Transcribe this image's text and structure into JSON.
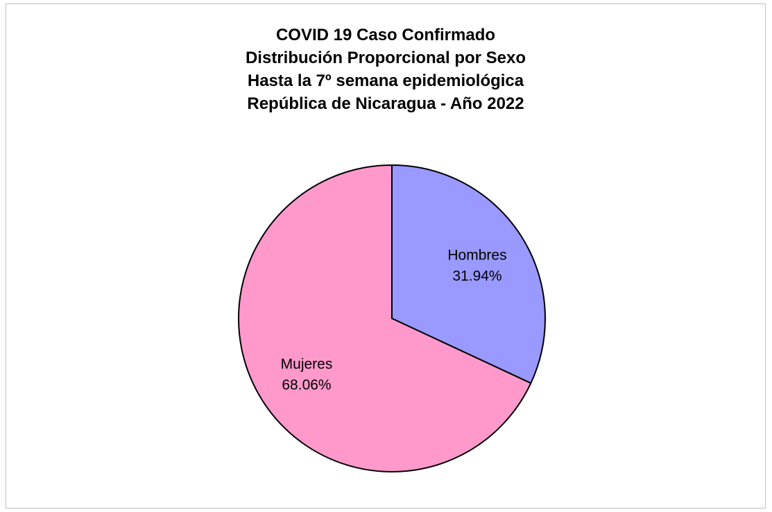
{
  "chart_data": {
    "type": "pie",
    "title_lines": [
      "COVID 19 Caso Confirmado",
      "Distribución Proporcional por Sexo",
      "Hasta la 7º semana epidemiológica",
      "República de Nicaragua - Año 2022"
    ],
    "slices": [
      {
        "label": "Hombres",
        "value": 31.94,
        "value_text": "31.94%",
        "color": "#9999ff"
      },
      {
        "label": "Mujeres",
        "value": 68.06,
        "value_text": "68.06%",
        "color": "#ff99cc"
      }
    ],
    "legend": "none",
    "border_color": "#bfbfbf",
    "slice_stroke": "#000000"
  }
}
